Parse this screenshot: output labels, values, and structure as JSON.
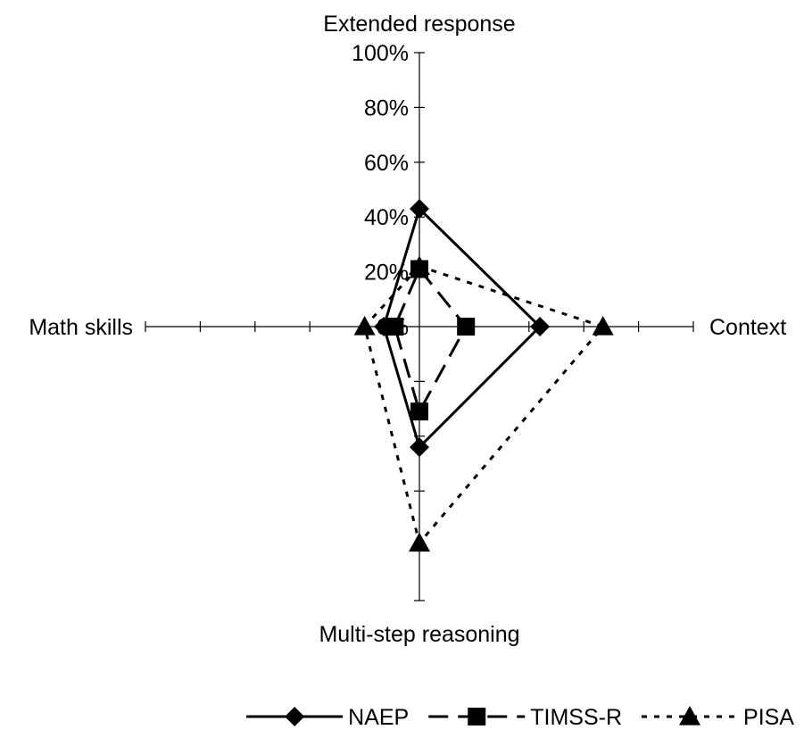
{
  "chart_data": {
    "type": "radar",
    "axes": [
      "Extended response",
      "Context",
      "Multi-step reasoning",
      "Math skills"
    ],
    "axis_label_positions": [
      "top",
      "right",
      "bottom",
      "left"
    ],
    "range": [
      0,
      100
    ],
    "tick_step": 20,
    "tick_labels": [
      "0%",
      "20%",
      "40%",
      "60%",
      "80%",
      "100%"
    ],
    "series": [
      {
        "name": "NAEP",
        "marker": "diamond",
        "dash": "solid",
        "color": "#000000",
        "values": [
          43,
          44,
          44,
          13
        ]
      },
      {
        "name": "TIMSS-R",
        "marker": "square",
        "dash": "dashed",
        "color": "#000000",
        "values": [
          21,
          17,
          31,
          9
        ]
      },
      {
        "name": "PISA",
        "marker": "triangle",
        "dash": "dotted",
        "color": "#000000",
        "values": [
          22,
          67,
          79,
          20
        ]
      }
    ],
    "legend": {
      "position": "bottom-right"
    }
  }
}
